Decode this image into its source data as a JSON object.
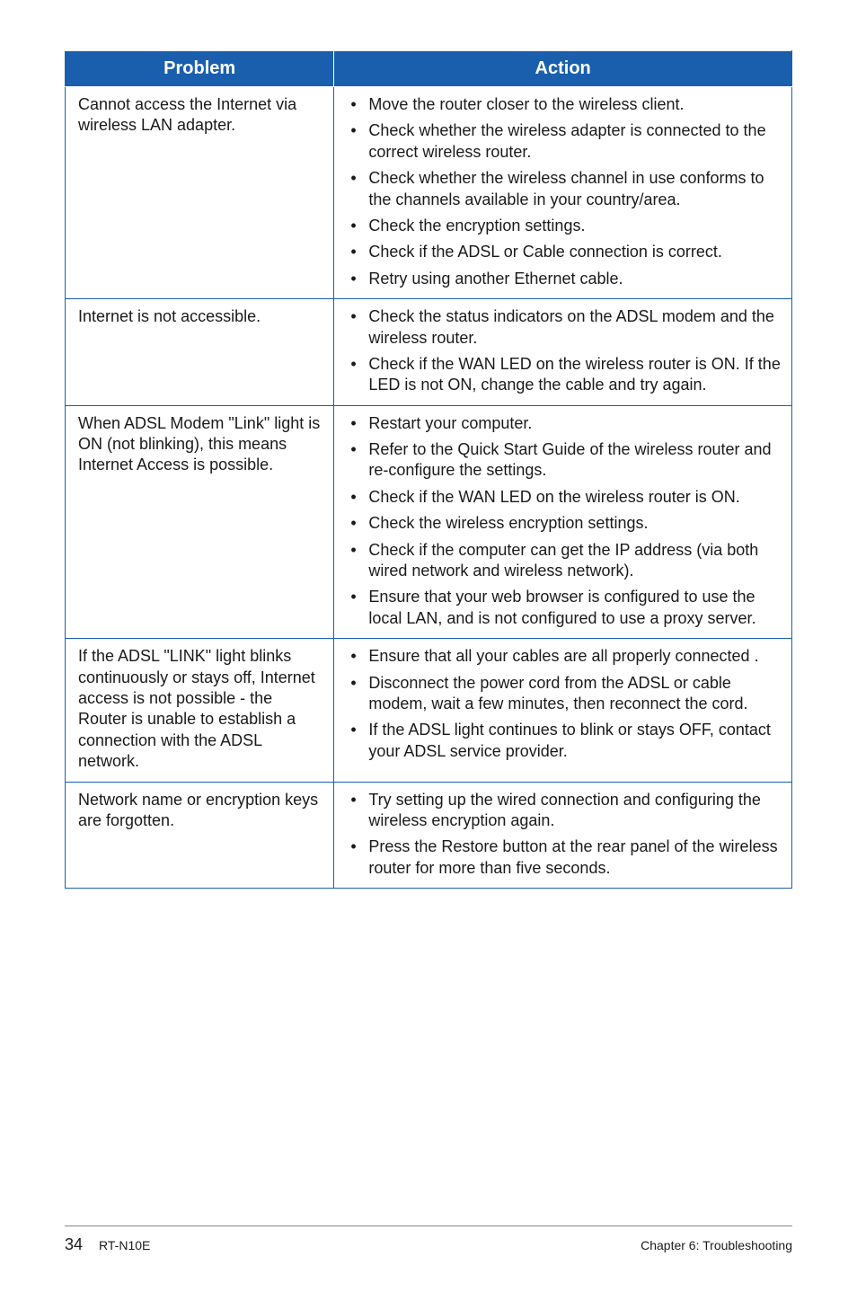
{
  "table": {
    "header_bg": "#1a5fad",
    "header_color": "#ffffff",
    "border_color": "#1a5fad",
    "columns": [
      "Problem",
      "Action"
    ],
    "rows": [
      {
        "problem": "Cannot access the Internet via wireless LAN adapter.",
        "actions": [
          "Move the router closer to the wireless client.",
          "Check whether the wireless adapter is connected to the correct wireless router.",
          "Check whether the wireless channel in use conforms to the channels available in your country/area.",
          "Check the encryption settings.",
          "Check if the ADSL or Cable connection is correct.",
          "Retry using another Ethernet cable."
        ]
      },
      {
        "problem": "Internet is not accessible.",
        "actions": [
          "Check the status indicators on the ADSL modem and the wireless router.",
          "Check if the WAN LED on the wireless router is ON. If the LED is not ON, change the cable and try again."
        ]
      },
      {
        "problem": "When ADSL Modem \"Link\" light is ON (not blinking), this means Internet Access is possible.",
        "actions": [
          "Restart your computer.",
          "Refer to the Quick Start Guide of the wireless router and re-configure the settings.",
          "Check if the WAN LED on the wireless router is ON.",
          "Check the wireless encryption settings.",
          "Check if the computer can get the IP address (via both wired network and wireless network).",
          "Ensure that your web browser is configured to use the local LAN, and is not configured to use a proxy server."
        ]
      },
      {
        "problem": "If the ADSL \"LINK\" light blinks continuously or stays off, Internet access is not possible - the Router is unable to establish a connection with the ADSL network.",
        "actions": [
          "Ensure that all your cables are all properly connected .",
          "Disconnect the power cord from the ADSL or cable modem, wait a few minutes, then reconnect the cord.",
          "If the ADSL light continues to blink or stays OFF, contact your ADSL service provider."
        ]
      },
      {
        "problem": "Network name or encryption keys are forgotten.",
        "actions": [
          "Try setting up the wired connection and configuring the wireless encryption again.",
          "Press the Restore button at the rear panel of the wireless router for more than five seconds."
        ]
      }
    ]
  },
  "footer": {
    "page_number": "34",
    "model": "RT-N10E",
    "chapter": "Chapter 6: Troubleshooting"
  }
}
